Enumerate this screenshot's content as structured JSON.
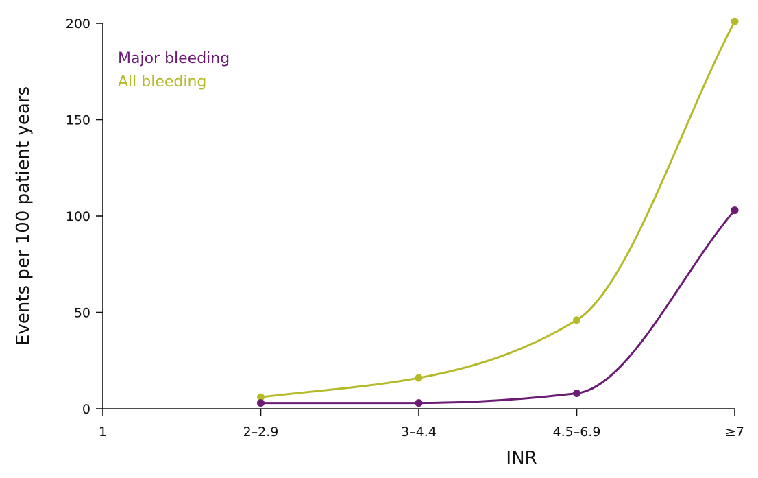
{
  "chart_data": {
    "type": "line",
    "xlabel": "INR",
    "ylabel": "Events per 100 patient years",
    "categories": [
      "1",
      "2–2.9",
      "3–4.4",
      "4.5–6.9",
      "≥7"
    ],
    "ylim": [
      0,
      200
    ],
    "yticks": [
      "0",
      "50",
      "100",
      "150",
      "200"
    ],
    "legend_position": "top-left",
    "series": [
      {
        "name": "Major bleeding",
        "color": "#6b1b74",
        "values": [
          null,
          3,
          3,
          8,
          103
        ]
      },
      {
        "name": "All bleeding",
        "color": "#b3bb2a",
        "values": [
          null,
          6,
          16,
          46,
          201
        ]
      }
    ]
  }
}
